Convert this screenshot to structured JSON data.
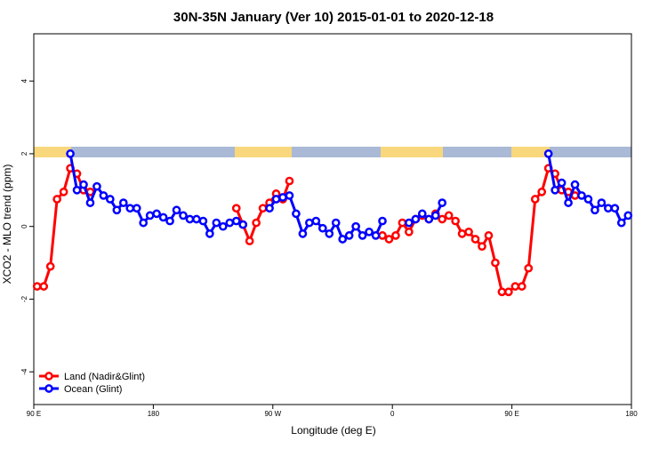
{
  "chart_data": {
    "type": "line",
    "title": "30N-35N January (Ver 10)   2015-01-01 to 2020-12-18",
    "x_label": "Longitude (deg E)",
    "y_label": "XCO2 - MLO trend (ppm)",
    "xlim": [
      90,
      540
    ],
    "xticks": [
      {
        "value": 90,
        "label": "90 E"
      },
      180,
      {
        "value": 270,
        "label": "90 W"
      },
      {
        "value": 360,
        "label": "0"
      },
      {
        "value": 450,
        "label": "90 E"
      },
      {
        "value": 540,
        "label": "180"
      }
    ],
    "ylim": [
      -4.9,
      5.3
    ],
    "yticks": [
      -4,
      -2,
      0,
      2,
      4
    ],
    "legend": "bottomleft",
    "x": [
      92.5,
      97.5,
      102.5,
      107.5,
      112.5,
      117.5,
      122.5,
      127.5,
      132.5,
      137.5,
      142.5,
      147.5,
      152.5,
      157.5,
      162.5,
      167.5,
      172.5,
      177.5,
      182.5,
      187.5,
      192.5,
      197.5,
      202.5,
      207.5,
      212.5,
      217.5,
      222.5,
      227.5,
      232.5,
      237.5,
      242.5,
      247.5,
      252.5,
      257.5,
      262.5,
      267.5,
      272.5,
      277.5,
      282.5,
      287.5,
      292.5,
      297.5,
      302.5,
      307.5,
      312.5,
      317.5,
      322.5,
      327.5,
      332.5,
      337.5,
      342.5,
      347.5,
      352.5,
      357.5,
      362.5,
      367.5,
      372.5,
      377.5,
      382.5,
      387.5,
      392.5,
      397.5,
      402.5,
      407.5,
      412.5,
      417.5,
      422.5,
      427.5,
      432.5,
      437.5,
      442.5,
      447.5,
      452.5,
      457.5,
      462.5,
      467.5,
      472.5,
      477.5,
      482.5,
      487.5,
      492.5,
      497.5,
      502.5,
      507.5,
      512.5,
      517.5,
      522.5,
      527.5,
      532.5,
      537.5
    ],
    "series": [
      {
        "name": "Land (Nadir&Glint)",
        "color": "#ff0000",
        "values": [
          -1.65,
          -1.65,
          -1.1,
          0.75,
          0.95,
          1.6,
          1.45,
          1.0,
          0.95,
          null,
          null,
          null,
          null,
          null,
          null,
          null,
          null,
          null,
          null,
          null,
          null,
          null,
          null,
          null,
          null,
          null,
          null,
          null,
          null,
          null,
          0.5,
          0.05,
          -0.4,
          0.1,
          0.5,
          0.65,
          0.9,
          0.75,
          1.25,
          null,
          null,
          null,
          null,
          null,
          null,
          null,
          null,
          null,
          null,
          null,
          null,
          null,
          -0.25,
          -0.35,
          -0.25,
          0.1,
          -0.15,
          0.2,
          0.3,
          0.2,
          0.35,
          0.2,
          0.3,
          0.15,
          -0.2,
          -0.15,
          -0.35,
          -0.55,
          -0.25,
          -1.0,
          -1.8,
          -1.8,
          -1.65,
          -1.65,
          -1.15,
          0.75,
          0.95,
          1.6,
          1.45,
          1.0,
          0.95,
          0.85,
          null,
          null,
          null,
          null,
          null,
          null,
          null,
          null
        ]
      },
      {
        "name": "Ocean (Glint)",
        "color": "#0000ff",
        "values": [
          null,
          null,
          null,
          null,
          null,
          2.0,
          1.0,
          1.15,
          0.65,
          1.1,
          0.85,
          0.75,
          0.45,
          0.65,
          0.5,
          0.5,
          0.1,
          0.3,
          0.35,
          0.25,
          0.15,
          0.45,
          0.3,
          0.2,
          0.2,
          0.15,
          -0.2,
          0.1,
          0.0,
          0.1,
          0.15,
          0.05,
          null,
          null,
          null,
          0.5,
          0.75,
          0.8,
          0.85,
          0.35,
          -0.2,
          0.1,
          0.15,
          -0.05,
          -0.2,
          0.1,
          -0.35,
          -0.25,
          0.0,
          -0.25,
          -0.15,
          -0.25,
          0.15,
          null,
          null,
          null,
          0.1,
          0.2,
          0.35,
          0.2,
          0.3,
          0.65,
          null,
          null,
          null,
          null,
          null,
          null,
          null,
          null,
          null,
          null,
          null,
          null,
          null,
          null,
          null,
          2.0,
          1.0,
          1.2,
          0.65,
          1.15,
          0.85,
          0.75,
          0.45,
          0.65,
          0.5,
          0.5,
          0.1,
          0.3
        ]
      }
    ]
  }
}
